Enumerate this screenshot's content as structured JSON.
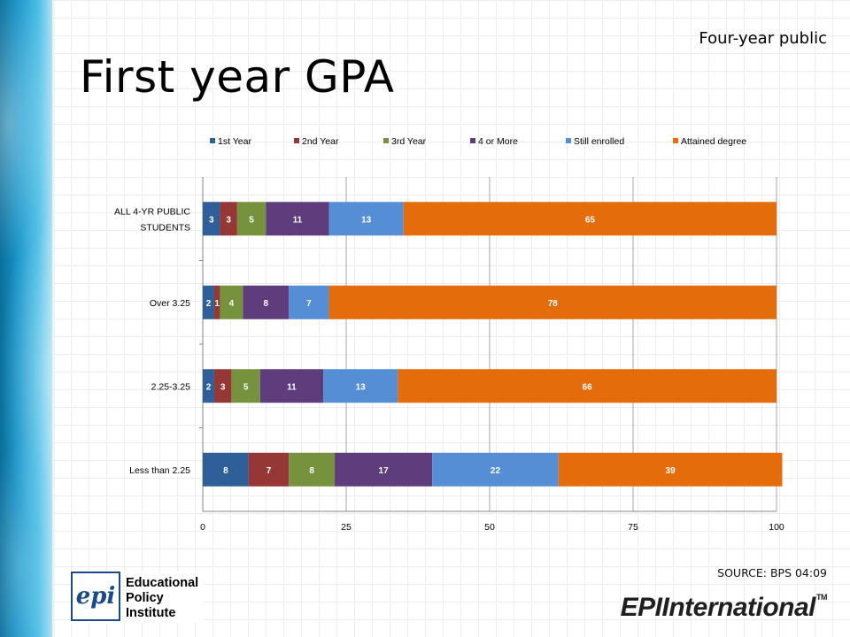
{
  "header": {
    "subtitle": "Four-year public",
    "title": "First year GPA"
  },
  "footer": {
    "source": "SOURCE: BPS 04:09",
    "logo_left_mark": "epi",
    "logo_left_lines": [
      "Educational",
      "Policy",
      "Institute"
    ],
    "logo_right_prefix": "EPI",
    "logo_right_word": "International",
    "logo_right_tm": "TM"
  },
  "chart_data": {
    "type": "bar",
    "orientation": "horizontal",
    "stacked": true,
    "title": "",
    "xlabel": "",
    "ylabel": "",
    "xlim": [
      0,
      100
    ],
    "xticks": [
      0,
      25,
      50,
      75,
      100
    ],
    "grid": "vertical",
    "legend_position": "top",
    "categories": [
      "ALL 4-YR PUBLIC STUDENTS",
      "Over 3.25",
      "2.25-3.25",
      "Less than 2.25"
    ],
    "series": [
      {
        "name": "1st Year",
        "color": "#2f5f99",
        "values": [
          3,
          2,
          2,
          8
        ]
      },
      {
        "name": "2nd Year",
        "color": "#953735",
        "values": [
          3,
          1,
          3,
          7
        ]
      },
      {
        "name": "3rd Year",
        "color": "#76923c",
        "values": [
          5,
          4,
          5,
          8
        ]
      },
      {
        "name": "4 or More",
        "color": "#5f3d7d",
        "values": [
          11,
          8,
          11,
          17
        ]
      },
      {
        "name": "Still enrolled",
        "color": "#558ed5",
        "values": [
          13,
          7,
          13,
          22
        ]
      },
      {
        "name": "Attained degree",
        "color": "#e46c0a",
        "values": [
          65,
          78,
          66,
          39
        ]
      }
    ]
  }
}
